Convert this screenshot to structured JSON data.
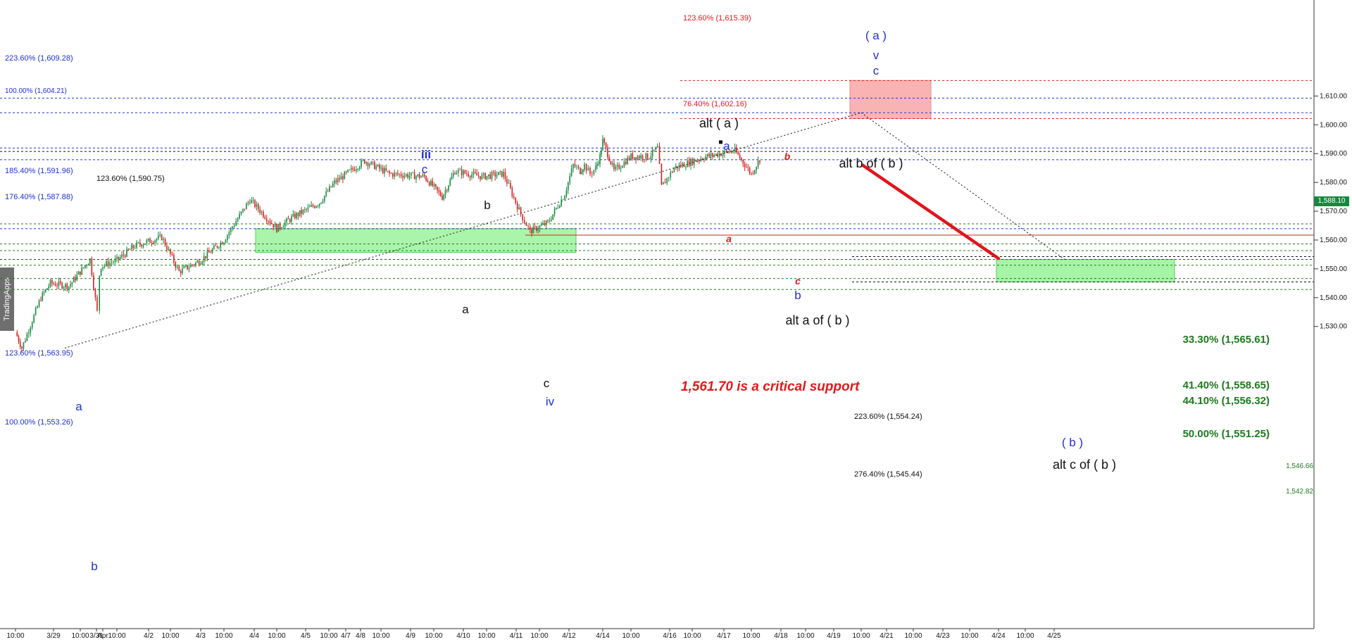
{
  "watermark": "TradingApps",
  "last_price_label": "1,588.10",
  "colors": {
    "blue_fib": "#1f2fd6",
    "green_fib": "#1d7a1d",
    "red_fib": "#e01b1b",
    "black_fib": "#111111",
    "up_candle": "#138a3e",
    "down_candle": "#d21f1f",
    "box_green": "#88f088",
    "box_red": "#f8a0a0",
    "support_line": "#e01b1b",
    "projection_line": "#e0151d"
  },
  "chart_data": {
    "type": "candlestick",
    "title": "",
    "xlabel": "",
    "ylabel": "",
    "ylim": [
      1523,
      1624
    ],
    "grid": false,
    "y_ticks": [
      "1,530.00",
      "1,540.00",
      "1,550.00",
      "1,560.00",
      "1,570.00",
      "1,580.00",
      "1,590.00",
      "1,600.00",
      "1,610.00"
    ],
    "x_ticks": [
      "10:00",
      "3/29",
      "10:00",
      "3/31",
      "Apr",
      "10:00",
      "4/2",
      "10:00",
      "4/3",
      "10:00",
      "4/4",
      "10:00",
      "4/5",
      "10:00",
      "4/7",
      "4/8",
      "10:00",
      "4/9",
      "10:00",
      "4/10",
      "10:00",
      "4/11",
      "10:00",
      "4/12",
      "4/14",
      "10:00",
      "4/16",
      "10:00",
      "4/17",
      "10:00",
      "4/18",
      "10:00",
      "4/19",
      "10:00",
      "4/21",
      "10:00",
      "4/23",
      "10:00",
      "4/24",
      "10:00",
      "4/25"
    ],
    "price_path": [
      {
        "x": "3/28 10:00",
        "y": 1528
      },
      {
        "x": "3/28 14:00",
        "y": 1522.5
      },
      {
        "x": "3/29 02:00",
        "y": 1540
      },
      {
        "x": "3/29 08:00",
        "y": 1545
      },
      {
        "x": "3/29 18:00",
        "y": 1544
      },
      {
        "x": "3/30 06:00",
        "y": 1553.3
      },
      {
        "x": "3/30 14:00",
        "y": 1535
      },
      {
        "x": "3/31 04:00",
        "y": 1548
      },
      {
        "x": "3/31 14:00",
        "y": 1551
      },
      {
        "x": "4/1 10:00",
        "y": 1553
      },
      {
        "x": "4/1 18:00",
        "y": 1558
      },
      {
        "x": "4/2 06:00",
        "y": 1561
      },
      {
        "x": "4/2 14:00",
        "y": 1549
      },
      {
        "x": "4/3 00:00",
        "y": 1553
      },
      {
        "x": "4/3 10:00",
        "y": 1560
      },
      {
        "x": "4/3 22:00",
        "y": 1574
      },
      {
        "x": "4/4 10:00",
        "y": 1564
      },
      {
        "x": "4/4 18:00",
        "y": 1568
      },
      {
        "x": "4/5 06:00",
        "y": 1573
      },
      {
        "x": "4/5 18:00",
        "y": 1580
      },
      {
        "x": "4/7 02:00",
        "y": 1587.5
      },
      {
        "x": "4/7 14:00",
        "y": 1583
      },
      {
        "x": "4/8 06:00",
        "y": 1582
      },
      {
        "x": "4/8 14:00",
        "y": 1575
      },
      {
        "x": "4/8 20:00",
        "y": 1584
      },
      {
        "x": "4/9 08:00",
        "y": 1582
      },
      {
        "x": "4/9 18:00",
        "y": 1583
      },
      {
        "x": "4/10 02:00",
        "y": 1569
      },
      {
        "x": "4/10 06:00",
        "y": 1563
      },
      {
        "x": "4/10 14:00",
        "y": 1566
      },
      {
        "x": "4/10 22:00",
        "y": 1576
      },
      {
        "x": "4/11 06:00",
        "y": 1586
      },
      {
        "x": "4/11 16:00",
        "y": 1584
      },
      {
        "x": "4/11 22:00",
        "y": 1586
      },
      {
        "x": "4/12 06:00",
        "y": 1583
      },
      {
        "x": "4/12 14:00",
        "y": 1585
      },
      {
        "x": "4/12 20:00",
        "y": 1589
      },
      {
        "x": "4/13 00:00",
        "y": 1594.5
      },
      {
        "x": "4/13 04:00",
        "y": 1584
      },
      {
        "x": "4/13 10:00",
        "y": 1589
      },
      {
        "x": "4/14 04:00",
        "y": 1589
      },
      {
        "x": "4/14 12:00",
        "y": 1592
      },
      {
        "x": "4/14 16:00",
        "y": 1578.5
      },
      {
        "x": "4/15 02:00",
        "y": 1585
      },
      {
        "x": "4/15 16:00",
        "y": 1589
      },
      {
        "x": "4/16 04:00",
        "y": 1591
      },
      {
        "x": "4/16 10:00",
        "y": 1583
      },
      {
        "x": "4/16 14:00",
        "y": 1588.1
      }
    ],
    "fib_levels_left": [
      {
        "label": "223.60% (1,609.28)",
        "value": 1609.28,
        "color": "blue"
      },
      {
        "label": "100.00% (1,604.21)",
        "value": 1604.21,
        "color": "blue"
      },
      {
        "label": "185.40% (1,591.96)",
        "value": 1591.96,
        "color": "blue"
      },
      {
        "label": "123.60% (1,590.75)",
        "value": 1590.75,
        "color": "black"
      },
      {
        "label": "176.40% (1,587.88)",
        "value": 1587.88,
        "color": "blue"
      },
      {
        "label": "123.60% (1,563.95)",
        "value": 1563.95,
        "color": "blue"
      },
      {
        "label": "100.00% (1,553.26)",
        "value": 1553.26,
        "color": "blue"
      }
    ],
    "fib_levels_top": [
      {
        "label": "123.60% (1,615.39)",
        "value": 1615.39,
        "color": "red"
      },
      {
        "label": "76.40% (1,602.16)",
        "value": 1602.16,
        "color": "red"
      }
    ],
    "fib_levels_right": [
      {
        "label": "33.30% (1,565.61)",
        "value": 1565.61
      },
      {
        "label": "41.40% (1,558.65)",
        "value": 1558.65
      },
      {
        "label": "44.10% (1,556.32)",
        "value": 1556.32
      },
      {
        "label": "50.00% (1,551.25)",
        "value": 1551.25
      },
      {
        "label": "1,546.66",
        "value": 1546.66
      },
      {
        "label": "1,542.82",
        "value": 1542.82
      }
    ],
    "projection_levels": [
      {
        "label": "223.60% (1,554.24)",
        "value": 1554.24
      },
      {
        "label": "276.40% (1,545.44)",
        "value": 1545.44
      }
    ],
    "critical_support": {
      "value": 1561.7,
      "text": "1,561.70 is a critical support"
    },
    "wave_labels": [
      {
        "text": "a",
        "color": "blue"
      },
      {
        "text": "b",
        "color": "blue"
      },
      {
        "text": "iii",
        "color": "blue"
      },
      {
        "text": "c",
        "color": "blue"
      },
      {
        "text": "b",
        "color": "black"
      },
      {
        "text": "a",
        "color": "black"
      },
      {
        "text": "c",
        "color": "black"
      },
      {
        "text": "iv",
        "color": "blue"
      },
      {
        "text": "alt ( a )",
        "color": "black"
      },
      {
        "text": "a",
        "color": "blue"
      },
      {
        "text": "a",
        "color": "red"
      },
      {
        "text": "b",
        "color": "red"
      },
      {
        "text": "c",
        "color": "red"
      },
      {
        "text": "b",
        "color": "blue"
      },
      {
        "text": "alt a of ( b )",
        "color": "black"
      },
      {
        "text": "alt b of ( b )",
        "color": "black"
      },
      {
        "text": "( a )",
        "color": "blue"
      },
      {
        "text": "v",
        "color": "blue"
      },
      {
        "text": "c",
        "color": "blue"
      },
      {
        "text": "( b )",
        "color": "blue"
      },
      {
        "text": "alt c of ( b )",
        "color": "black"
      }
    ]
  }
}
